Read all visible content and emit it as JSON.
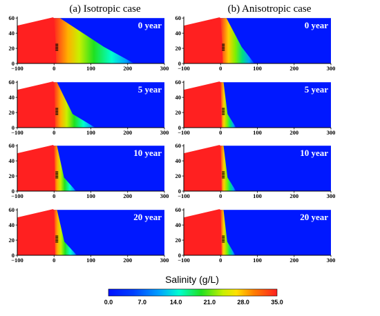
{
  "columns": [
    {
      "title": "(a) Isotropic case",
      "years": [
        "0 year",
        "5 year",
        "10 year",
        "20 year"
      ]
    },
    {
      "title": "(b) Anisotropic case",
      "years": [
        "0 year",
        "5 year",
        "10 year",
        "20 year"
      ]
    }
  ],
  "x_ticks": [
    "−100",
    "0",
    "100",
    "200",
    "300"
  ],
  "y_ticks": [
    "60",
    "40",
    "20",
    "0"
  ],
  "x_range": [
    -100,
    300
  ],
  "y_range": [
    0,
    62
  ],
  "toe_positions": {
    "isotropic": [
      218,
      112,
      60,
      62
    ],
    "anisotropic": [
      92,
      42,
      42,
      40
    ]
  },
  "colorbar": {
    "title": "Salinity (g/L)",
    "ticks": [
      "0.0",
      "7.0",
      "14.0",
      "21.0",
      "28.0",
      "35.0"
    ],
    "range": [
      0,
      35
    ],
    "colors": [
      "#0010ff",
      "#00a0ff",
      "#00ffd0",
      "#20e020",
      "#ffe000",
      "#ff8000",
      "#ff2020"
    ]
  }
}
